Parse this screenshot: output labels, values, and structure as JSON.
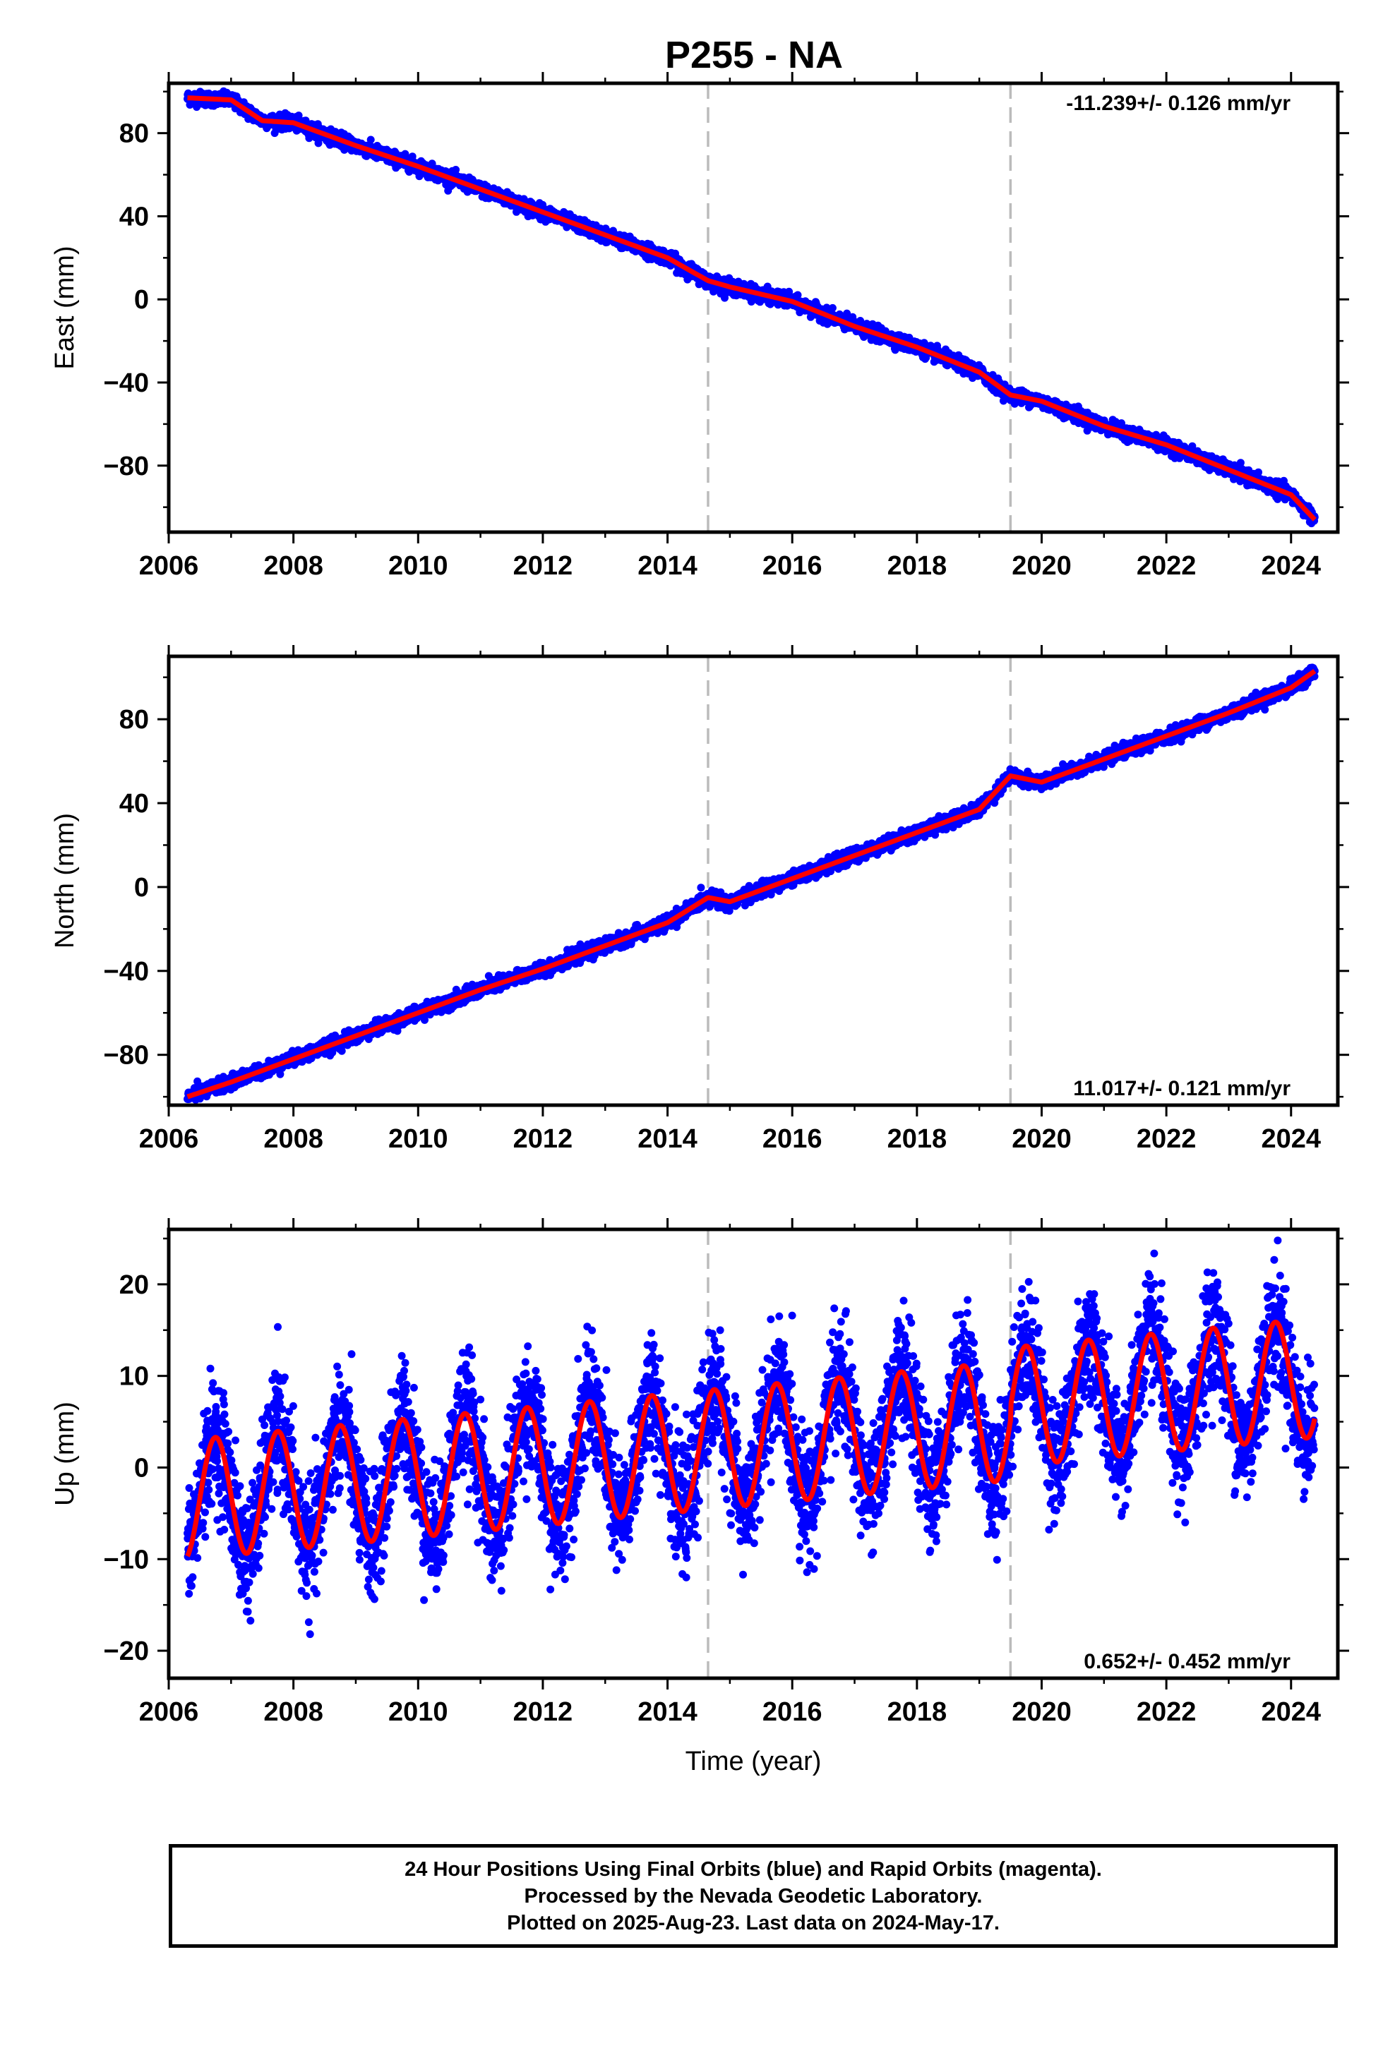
{
  "title": "P255 - NA",
  "footer": {
    "line1": "24 Hour Positions Using Final Orbits (blue) and Rapid Orbits (magenta).",
    "line2": "Processed by the Nevada Geodetic Laboratory.",
    "line3": "Plotted on 2025-Aug-23. Last data on 2024-May-17."
  },
  "colors": {
    "data": "#0000ff",
    "fit": "#ff0000",
    "breaks": "#bbbbbb"
  },
  "chart_data": [
    {
      "type": "scatter",
      "ylabel": "East (mm)",
      "xlabel": "",
      "rate": "-11.239+/- 0.126 mm/yr",
      "xlim": [
        2006.0,
        2024.75
      ],
      "ylim": [
        -112,
        104
      ],
      "xticks": [
        2006,
        2008,
        2010,
        2012,
        2014,
        2016,
        2018,
        2020,
        2022,
        2024
      ],
      "yticks": [
        -80,
        -40,
        0,
        40,
        80
      ],
      "equipment_breaks": [
        2014.65,
        2019.5
      ],
      "series": [
        {
          "kind": "fit",
          "x": [
            2006.3,
            2007.0,
            2007.5,
            2008.0,
            2009.0,
            2010.0,
            2011.0,
            2012.0,
            2013.0,
            2014.0,
            2014.65,
            2015.0,
            2016.0,
            2017.0,
            2018.0,
            2019.0,
            2019.5,
            2020.0,
            2021.0,
            2022.0,
            2023.0,
            2024.0,
            2024.38
          ],
          "y": [
            97,
            96,
            86,
            85,
            74,
            64,
            53,
            42,
            31,
            20,
            9,
            6,
            -1,
            -13,
            -23,
            -35,
            -46,
            -49,
            -61,
            -70,
            -82,
            -94,
            -106
          ]
        }
      ]
    },
    {
      "type": "scatter",
      "ylabel": "North (mm)",
      "xlabel": "",
      "rate": "11.017+/- 0.121 mm/yr",
      "xlim": [
        2006.0,
        2024.75
      ],
      "ylim": [
        -104,
        110
      ],
      "xticks": [
        2006,
        2008,
        2010,
        2012,
        2014,
        2016,
        2018,
        2020,
        2022,
        2024
      ],
      "yticks": [
        -80,
        -40,
        0,
        40,
        80
      ],
      "equipment_breaks": [
        2014.65,
        2019.5
      ],
      "series": [
        {
          "kind": "fit",
          "x": [
            2006.3,
            2007.0,
            2008.0,
            2009.0,
            2010.0,
            2011.0,
            2012.0,
            2013.0,
            2014.0,
            2014.65,
            2015.0,
            2016.0,
            2017.0,
            2018.0,
            2019.0,
            2019.5,
            2020.0,
            2021.0,
            2022.0,
            2023.0,
            2024.0,
            2024.38
          ],
          "y": [
            -100,
            -93,
            -82,
            -71,
            -60,
            -49,
            -39,
            -28,
            -17,
            -5,
            -7,
            4,
            15,
            26,
            37,
            53,
            50,
            61,
            72,
            83,
            95,
            103
          ]
        }
      ]
    },
    {
      "type": "scatter",
      "ylabel": "Up (mm)",
      "xlabel": "Time (year)",
      "rate": "0.652+/- 0.452 mm/yr",
      "xlim": [
        2006.0,
        2024.75
      ],
      "ylim": [
        -23,
        26
      ],
      "xticks": [
        2006,
        2008,
        2010,
        2012,
        2014,
        2016,
        2018,
        2020,
        2022,
        2024
      ],
      "yticks": [
        -20,
        -10,
        0,
        10,
        20
      ],
      "equipment_breaks": [
        2014.65,
        2019.5
      ],
      "seasonal": {
        "amplitude_mm": 6.5,
        "trend_mm_per_yr": 0.652,
        "offset_mm": -3.5,
        "phase_peak_fraction": 0.75
      },
      "series": []
    }
  ]
}
